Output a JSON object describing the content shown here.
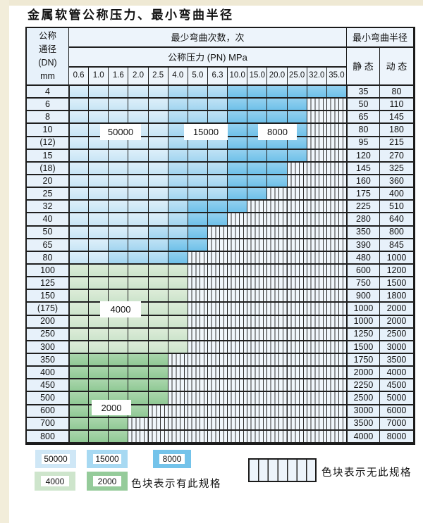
{
  "title": "金属软管公称压力、最小弯曲半径",
  "table": {
    "header": {
      "dn_lines": [
        "公称",
        "通径",
        "(DN)",
        "mm"
      ],
      "cycles_label": "最少弯曲次数，次",
      "pressure_label": "公称压力 (PN) MPa",
      "radius_label": "最小弯曲半径",
      "static_label": "静 态",
      "dynamic_label": "动 态",
      "pressure_columns": [
        "0.6",
        "1.0",
        "1.6",
        "2.0",
        "2.5",
        "4.0",
        "5.0",
        "6.3",
        "10.0",
        "15.0",
        "20.0",
        "25.0",
        "32.0",
        "35.0"
      ]
    },
    "cell_codes": {
      "b50": "50000",
      "b15": "15000",
      "b8": "8000",
      "g4": "4000",
      "g2": "2000",
      "x": "无此规格"
    },
    "rows": [
      {
        "dn": "4",
        "cells": [
          "b50",
          "b50",
          "b50",
          "b50",
          "b50",
          "b15",
          "b15",
          "b15",
          "b8",
          "b8",
          "b8",
          "b8",
          "b8",
          "b8"
        ],
        "static": "35",
        "dynamic": "80"
      },
      {
        "dn": "6",
        "cells": [
          "b50",
          "b50",
          "b50",
          "b50",
          "b50",
          "b15",
          "b15",
          "b15",
          "b8",
          "b8",
          "b8",
          "b8",
          "x",
          "x"
        ],
        "static": "50",
        "dynamic": "110"
      },
      {
        "dn": "8",
        "cells": [
          "b50",
          "b50",
          "b50",
          "b50",
          "b50",
          "b15",
          "b15",
          "b15",
          "b8",
          "b8",
          "b8",
          "b8",
          "x",
          "x"
        ],
        "static": "65",
        "dynamic": "145"
      },
      {
        "dn": "10",
        "cells": [
          "b50",
          "b50",
          "b50",
          "b50",
          "b50",
          "b15",
          "b15",
          "b15",
          "b8",
          "b8",
          "b8",
          "b8",
          "x",
          "x"
        ],
        "static": "80",
        "dynamic": "180"
      },
      {
        "dn": "(12)",
        "cells": [
          "b50",
          "b50",
          "b50",
          "b50",
          "b50",
          "b15",
          "b15",
          "b15",
          "b8",
          "b8",
          "b8",
          "b8",
          "x",
          "x"
        ],
        "static": "95",
        "dynamic": "215"
      },
      {
        "dn": "15",
        "cells": [
          "b50",
          "b50",
          "b50",
          "b50",
          "b50",
          "b15",
          "b15",
          "b15",
          "b8",
          "b8",
          "b8",
          "b8",
          "x",
          "x"
        ],
        "static": "120",
        "dynamic": "270"
      },
      {
        "dn": "(18)",
        "cells": [
          "b50",
          "b50",
          "b50",
          "b50",
          "b50",
          "b15",
          "b15",
          "b15",
          "b8",
          "b8",
          "b8",
          "x",
          "x",
          "x"
        ],
        "static": "145",
        "dynamic": "325"
      },
      {
        "dn": "20",
        "cells": [
          "b50",
          "b50",
          "b50",
          "b50",
          "b50",
          "b15",
          "b15",
          "b15",
          "b8",
          "b8",
          "b8",
          "x",
          "x",
          "x"
        ],
        "static": "160",
        "dynamic": "360"
      },
      {
        "dn": "25",
        "cells": [
          "b50",
          "b50",
          "b50",
          "b50",
          "b50",
          "b15",
          "b15",
          "b15",
          "b8",
          "b8",
          "x",
          "x",
          "x",
          "x"
        ],
        "static": "175",
        "dynamic": "400"
      },
      {
        "dn": "32",
        "cells": [
          "b50",
          "b50",
          "b50",
          "b50",
          "b50",
          "b15",
          "b8",
          "b8",
          "b8",
          "x",
          "x",
          "x",
          "x",
          "x"
        ],
        "static": "225",
        "dynamic": "510"
      },
      {
        "dn": "40",
        "cells": [
          "b50",
          "b50",
          "b50",
          "b50",
          "b50",
          "b15",
          "b8",
          "b8",
          "x",
          "x",
          "x",
          "x",
          "x",
          "x"
        ],
        "static": "280",
        "dynamic": "640"
      },
      {
        "dn": "50",
        "cells": [
          "b50",
          "b50",
          "b50",
          "b50",
          "b15",
          "b15",
          "b8",
          "x",
          "x",
          "x",
          "x",
          "x",
          "x",
          "x"
        ],
        "static": "350",
        "dynamic": "800"
      },
      {
        "dn": "65",
        "cells": [
          "b50",
          "b50",
          "b15",
          "b15",
          "b15",
          "b8",
          "b8",
          "x",
          "x",
          "x",
          "x",
          "x",
          "x",
          "x"
        ],
        "static": "390",
        "dynamic": "845"
      },
      {
        "dn": "80",
        "cells": [
          "b50",
          "b50",
          "b15",
          "b15",
          "b15",
          "b8",
          "x",
          "x",
          "x",
          "x",
          "x",
          "x",
          "x",
          "x"
        ],
        "static": "480",
        "dynamic": "1000"
      },
      {
        "dn": "100",
        "cells": [
          "g4",
          "g4",
          "g4",
          "g4",
          "g4",
          "g4",
          "x",
          "x",
          "x",
          "x",
          "x",
          "x",
          "x",
          "x"
        ],
        "static": "600",
        "dynamic": "1200"
      },
      {
        "dn": "125",
        "cells": [
          "g4",
          "g4",
          "g4",
          "g4",
          "g4",
          "g4",
          "x",
          "x",
          "x",
          "x",
          "x",
          "x",
          "x",
          "x"
        ],
        "static": "750",
        "dynamic": "1500"
      },
      {
        "dn": "150",
        "cells": [
          "g4",
          "g4",
          "g4",
          "g4",
          "g4",
          "g4",
          "x",
          "x",
          "x",
          "x",
          "x",
          "x",
          "x",
          "x"
        ],
        "static": "900",
        "dynamic": "1800"
      },
      {
        "dn": "(175)",
        "cells": [
          "g4",
          "g4",
          "g4",
          "g4",
          "g4",
          "g4",
          "x",
          "x",
          "x",
          "x",
          "x",
          "x",
          "x",
          "x"
        ],
        "static": "1000",
        "dynamic": "2000"
      },
      {
        "dn": "200",
        "cells": [
          "g4",
          "g4",
          "g4",
          "g4",
          "g4",
          "g4",
          "x",
          "x",
          "x",
          "x",
          "x",
          "x",
          "x",
          "x"
        ],
        "static": "1000",
        "dynamic": "2000"
      },
      {
        "dn": "250",
        "cells": [
          "g4",
          "g4",
          "g4",
          "g4",
          "g4",
          "g4",
          "x",
          "x",
          "x",
          "x",
          "x",
          "x",
          "x",
          "x"
        ],
        "static": "1250",
        "dynamic": "2500"
      },
      {
        "dn": "300",
        "cells": [
          "g4",
          "g4",
          "g4",
          "g4",
          "g4",
          "g4",
          "x",
          "x",
          "x",
          "x",
          "x",
          "x",
          "x",
          "x"
        ],
        "static": "1500",
        "dynamic": "3000"
      },
      {
        "dn": "350",
        "cells": [
          "g2",
          "g2",
          "g2",
          "g2",
          "g2",
          "x",
          "x",
          "x",
          "x",
          "x",
          "x",
          "x",
          "x",
          "x"
        ],
        "static": "1750",
        "dynamic": "3500"
      },
      {
        "dn": "400",
        "cells": [
          "g2",
          "g2",
          "g2",
          "g2",
          "g2",
          "x",
          "x",
          "x",
          "x",
          "x",
          "x",
          "x",
          "x",
          "x"
        ],
        "static": "2000",
        "dynamic": "4000"
      },
      {
        "dn": "450",
        "cells": [
          "g2",
          "g2",
          "g2",
          "g2",
          "g2",
          "x",
          "x",
          "x",
          "x",
          "x",
          "x",
          "x",
          "x",
          "x"
        ],
        "static": "2250",
        "dynamic": "4500"
      },
      {
        "dn": "500",
        "cells": [
          "g2",
          "g2",
          "g2",
          "g2",
          "g2",
          "x",
          "x",
          "x",
          "x",
          "x",
          "x",
          "x",
          "x",
          "x"
        ],
        "static": "2500",
        "dynamic": "5000"
      },
      {
        "dn": "600",
        "cells": [
          "g2",
          "g2",
          "g2",
          "g2",
          "x",
          "x",
          "x",
          "x",
          "x",
          "x",
          "x",
          "x",
          "x",
          "x"
        ],
        "static": "3000",
        "dynamic": "6000"
      },
      {
        "dn": "700",
        "cells": [
          "g2",
          "g2",
          "g2",
          "x",
          "x",
          "x",
          "x",
          "x",
          "x",
          "x",
          "x",
          "x",
          "x",
          "x"
        ],
        "static": "3500",
        "dynamic": "7000"
      },
      {
        "dn": "800",
        "cells": [
          "g2",
          "g2",
          "g2",
          "x",
          "x",
          "x",
          "x",
          "x",
          "x",
          "x",
          "x",
          "x",
          "x",
          "x"
        ],
        "static": "4000",
        "dynamic": "8000"
      }
    ],
    "overlay_labels": [
      {
        "text": "50000"
      },
      {
        "text": "15000"
      },
      {
        "text": "8000"
      },
      {
        "text": "4000"
      },
      {
        "text": "2000"
      }
    ]
  },
  "legend": {
    "items": [
      {
        "label": "50000",
        "code": "b50"
      },
      {
        "label": "15000",
        "code": "b15"
      },
      {
        "label": "8000",
        "code": "b8"
      },
      {
        "label": "4000",
        "code": "g4"
      },
      {
        "label": "2000",
        "code": "g2"
      }
    ],
    "has_spec_text": "色块表示有此规格",
    "no_spec_text": "色块表示无此规格"
  },
  "colors": {
    "blue_50000": "#cfe7f6",
    "blue_15000": "#a7d9f2",
    "blue_8000": "#74c3ea",
    "green_4000": "#cee5cc",
    "green_2000": "#95cb9a",
    "no_spec_bg": "#edf4fb",
    "grid_line": "#1f1f1f"
  }
}
